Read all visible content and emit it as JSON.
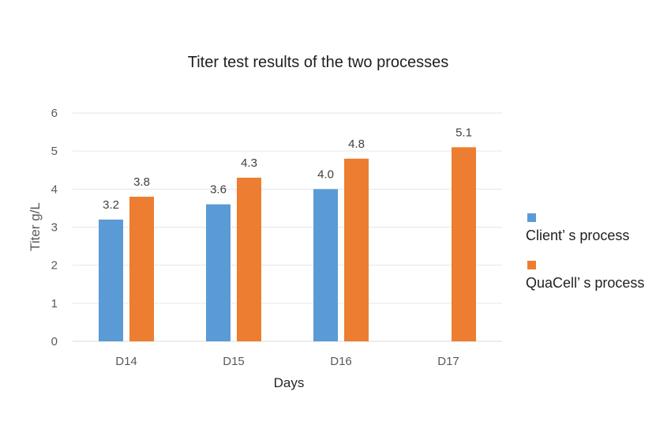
{
  "chart_data": {
    "type": "bar",
    "title": "Titer test results of the two processes",
    "xlabel": "Days",
    "ylabel": "Titer g/L",
    "categories": [
      "D14",
      "D15",
      "D16",
      "D17"
    ],
    "series": [
      {
        "name": "Client’ s process",
        "values": [
          3.2,
          3.6,
          4.0,
          null
        ],
        "labels": [
          "3.2",
          "3.6",
          "4.0",
          ""
        ],
        "color": "#5b9bd5"
      },
      {
        "name": "QuaCell’ s process",
        "values": [
          3.8,
          4.3,
          4.8,
          5.1
        ],
        "labels": [
          "3.8",
          "4.3",
          "4.8",
          "5.1"
        ],
        "color": "#ed7d31"
      }
    ],
    "ylim": [
      0,
      6
    ],
    "yticks": [
      0,
      1,
      2,
      3,
      4,
      5,
      6
    ],
    "grid": true,
    "legend": "right"
  }
}
